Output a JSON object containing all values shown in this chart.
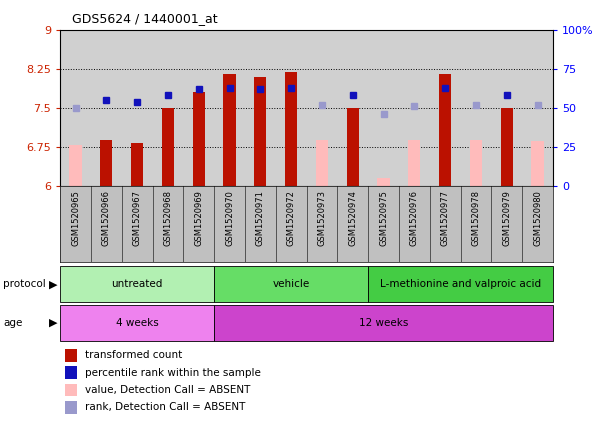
{
  "title": "GDS5624 / 1440001_at",
  "samples": [
    "GSM1520965",
    "GSM1520966",
    "GSM1520967",
    "GSM1520968",
    "GSM1520969",
    "GSM1520970",
    "GSM1520971",
    "GSM1520972",
    "GSM1520973",
    "GSM1520974",
    "GSM1520975",
    "GSM1520976",
    "GSM1520977",
    "GSM1520978",
    "GSM1520979",
    "GSM1520980"
  ],
  "red_values": [
    null,
    6.88,
    6.82,
    7.5,
    7.8,
    8.15,
    8.1,
    8.18,
    null,
    7.49,
    null,
    null,
    8.15,
    null,
    7.5,
    null
  ],
  "pink_values": [
    6.78,
    null,
    null,
    null,
    null,
    null,
    null,
    null,
    6.88,
    null,
    6.15,
    6.88,
    null,
    6.88,
    null,
    6.87
  ],
  "blue_values": [
    null,
    55.0,
    54.0,
    58.0,
    62.0,
    63.0,
    62.0,
    63.0,
    null,
    58.0,
    null,
    null,
    63.0,
    null,
    58.5,
    null
  ],
  "lightblue_values": [
    50.0,
    null,
    null,
    null,
    null,
    null,
    null,
    null,
    52.0,
    null,
    46.0,
    51.0,
    null,
    52.0,
    null,
    52.0
  ],
  "absent_red": [
    true,
    false,
    false,
    false,
    false,
    false,
    false,
    false,
    true,
    false,
    true,
    true,
    false,
    true,
    false,
    true
  ],
  "absent_blue": [
    true,
    false,
    false,
    false,
    false,
    false,
    false,
    false,
    true,
    false,
    true,
    true,
    false,
    true,
    false,
    true
  ],
  "proto_groups": [
    {
      "label": "untreated",
      "start": 0,
      "end": 5,
      "color": "#b2f0b2"
    },
    {
      "label": "vehicle",
      "start": 5,
      "end": 10,
      "color": "#66dd66"
    },
    {
      "label": "L-methionine and valproic acid",
      "start": 10,
      "end": 16,
      "color": "#44cc44"
    }
  ],
  "age_groups": [
    {
      "label": "4 weeks",
      "start": 0,
      "end": 5,
      "color": "#ee82ee"
    },
    {
      "label": "12 weeks",
      "start": 5,
      "end": 16,
      "color": "#cc44cc"
    }
  ],
  "ylim_left": [
    6,
    9
  ],
  "ylim_right": [
    0,
    100
  ],
  "yticks_left": [
    6,
    6.75,
    7.5,
    8.25,
    9
  ],
  "yticks_right": [
    0,
    25,
    50,
    75,
    100
  ],
  "ytick_labels_left": [
    "6",
    "6.75",
    "7.5",
    "8.25",
    "9"
  ],
  "ytick_labels_right": [
    "0",
    "25",
    "50",
    "75",
    "100%"
  ],
  "hlines": [
    6.75,
    7.5,
    8.25
  ],
  "bar_width": 0.4,
  "bar_color_red": "#bb1100",
  "bar_color_pink": "#ffbbbb",
  "dot_color_blue": "#1111bb",
  "dot_color_lightblue": "#9999cc",
  "bar_bottom": 6.0,
  "legend_items": [
    {
      "color": "#bb1100",
      "label": "transformed count"
    },
    {
      "color": "#1111bb",
      "label": "percentile rank within the sample"
    },
    {
      "color": "#ffbbbb",
      "label": "value, Detection Call = ABSENT"
    },
    {
      "color": "#9999cc",
      "label": "rank, Detection Call = ABSENT"
    }
  ],
  "xticklabel_area_color": "#c0c0c0",
  "chart_bg_color": "#d0d0d0"
}
